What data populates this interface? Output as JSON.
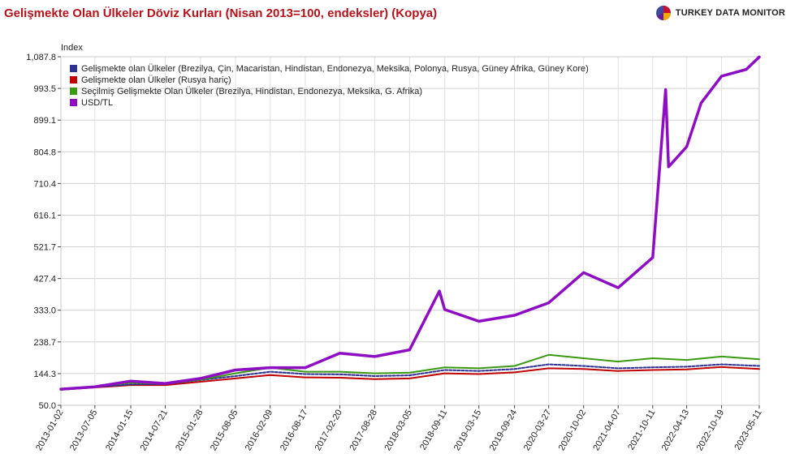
{
  "header": {
    "title": "Gelişmekte Olan Ülkeler Döviz Kurları (Nisan 2013=100, endeksler) (Kopya)",
    "brand": "TURKEY DATA MONITOR",
    "brand_icon": "pie-logo-icon"
  },
  "colors": {
    "title": "#b3131b",
    "series_navy": "#2e3192",
    "series_red": "#c00000",
    "series_green": "#3a9a12",
    "series_purple": "#8e0ec4",
    "grid": "#d0d0d0"
  },
  "chart_data": {
    "type": "line",
    "title": "Gelişmekte Olan Ülkeler Döviz Kurları (Nisan 2013=100, endeksler) (Kopya)",
    "ylabel": "Index",
    "xlabel": "",
    "ylim": [
      50.0,
      1087.8
    ],
    "yticks": [
      "50.0",
      "144.3",
      "238.7",
      "333.0",
      "427.4",
      "521.7",
      "616.1",
      "710.4",
      "804.8",
      "899.1",
      "993.5",
      "1,087.8"
    ],
    "ytick_values": [
      50.0,
      144.3,
      238.7,
      333.0,
      427.4,
      521.7,
      616.1,
      710.4,
      804.8,
      899.1,
      993.5,
      1087.8
    ],
    "xticks": [
      "2013-01-02",
      "2013-07-05",
      "2014-01-15",
      "2014-07-21",
      "2015-01-28",
      "2015-08-05",
      "2016-02-09",
      "2016-08-17",
      "2017-02-20",
      "2017-08-28",
      "2018-03-05",
      "2018-09-11",
      "2019-03-15",
      "2019-09-24",
      "2020-03-27",
      "2020-10-02",
      "2021-04-07",
      "2021-10-11",
      "2022-04-13",
      "2022-10-19",
      "2023-05-11"
    ],
    "grid": true,
    "legend_position": "top-left",
    "series": [
      {
        "name": "Gelişmekte olan Ülkeler (Brezilya, Çin, Macaristan, Hindistan, Endonezya, Meksika, Polonya, Rusya, Güney Afrika, Güney Kore)",
        "color": "#2e3192",
        "points": [
          [
            "2013-01-02",
            97
          ],
          [
            "2013-07-05",
            104
          ],
          [
            "2014-01-15",
            112
          ],
          [
            "2014-07-21",
            113
          ],
          [
            "2015-01-28",
            125
          ],
          [
            "2015-08-05",
            137
          ],
          [
            "2016-02-09",
            150
          ],
          [
            "2016-08-17",
            143
          ],
          [
            "2017-02-20",
            142
          ],
          [
            "2017-08-28",
            137
          ],
          [
            "2018-03-05",
            139
          ],
          [
            "2018-09-11",
            155
          ],
          [
            "2019-03-15",
            152
          ],
          [
            "2019-09-24",
            158
          ],
          [
            "2020-03-27",
            172
          ],
          [
            "2020-10-02",
            167
          ],
          [
            "2021-04-07",
            160
          ],
          [
            "2021-10-11",
            163
          ],
          [
            "2022-04-13",
            165
          ],
          [
            "2022-10-19",
            172
          ],
          [
            "2023-05-11",
            167
          ]
        ]
      },
      {
        "name": "Gelişmekte olan Ülkeler (Rusya hariç)",
        "color": "#c00000",
        "points": [
          [
            "2013-01-02",
            96
          ],
          [
            "2013-07-05",
            103
          ],
          [
            "2014-01-15",
            110
          ],
          [
            "2014-07-21",
            110
          ],
          [
            "2015-01-28",
            120
          ],
          [
            "2015-08-05",
            130
          ],
          [
            "2016-02-09",
            140
          ],
          [
            "2016-08-17",
            133
          ],
          [
            "2017-02-20",
            132
          ],
          [
            "2017-08-28",
            128
          ],
          [
            "2018-03-05",
            130
          ],
          [
            "2018-09-11",
            145
          ],
          [
            "2019-03-15",
            143
          ],
          [
            "2019-09-24",
            148
          ],
          [
            "2020-03-27",
            160
          ],
          [
            "2020-10-02",
            158
          ],
          [
            "2021-04-07",
            152
          ],
          [
            "2021-10-11",
            155
          ],
          [
            "2022-04-13",
            157
          ],
          [
            "2022-10-19",
            164
          ],
          [
            "2023-05-11",
            158
          ]
        ]
      },
      {
        "name": "Seçilmiş Gelişmekte Olan Ülkeler (Brezilya, Hindistan, Endonezya, Meksika, G. Afrika)",
        "color": "#3a9a12",
        "points": [
          [
            "2013-01-02",
            96
          ],
          [
            "2013-07-05",
            106
          ],
          [
            "2014-01-15",
            117
          ],
          [
            "2014-07-21",
            114
          ],
          [
            "2015-01-28",
            126
          ],
          [
            "2015-08-05",
            145
          ],
          [
            "2016-02-09",
            162
          ],
          [
            "2016-08-17",
            150
          ],
          [
            "2017-02-20",
            150
          ],
          [
            "2017-08-28",
            145
          ],
          [
            "2018-03-05",
            147
          ],
          [
            "2018-09-11",
            163
          ],
          [
            "2019-03-15",
            160
          ],
          [
            "2019-09-24",
            167
          ],
          [
            "2020-03-27",
            200
          ],
          [
            "2020-10-02",
            190
          ],
          [
            "2021-04-07",
            180
          ],
          [
            "2021-10-11",
            190
          ],
          [
            "2022-04-13",
            185
          ],
          [
            "2022-10-19",
            195
          ],
          [
            "2023-05-11",
            187
          ]
        ]
      },
      {
        "name": "USD/TL",
        "color": "#8e0ec4",
        "points": [
          [
            "2013-01-02",
            98
          ],
          [
            "2013-07-05",
            105
          ],
          [
            "2014-01-15",
            122
          ],
          [
            "2014-07-21",
            115
          ],
          [
            "2015-01-28",
            130
          ],
          [
            "2015-08-05",
            155
          ],
          [
            "2016-02-09",
            162
          ],
          [
            "2016-08-17",
            162
          ],
          [
            "2017-02-20",
            205
          ],
          [
            "2017-08-28",
            195
          ],
          [
            "2018-03-05",
            215
          ],
          [
            "2018-08-13",
            390
          ],
          [
            "2018-09-11",
            335
          ],
          [
            "2019-03-15",
            300
          ],
          [
            "2019-09-24",
            318
          ],
          [
            "2020-03-27",
            355
          ],
          [
            "2020-10-02",
            445
          ],
          [
            "2021-04-07",
            400
          ],
          [
            "2021-10-11",
            490
          ],
          [
            "2021-12-20",
            990
          ],
          [
            "2022-01-05",
            760
          ],
          [
            "2022-04-13",
            820
          ],
          [
            "2022-06-30",
            950
          ],
          [
            "2022-10-19",
            1030
          ],
          [
            "2023-03-01",
            1050
          ],
          [
            "2023-05-11",
            1087
          ]
        ]
      }
    ]
  }
}
